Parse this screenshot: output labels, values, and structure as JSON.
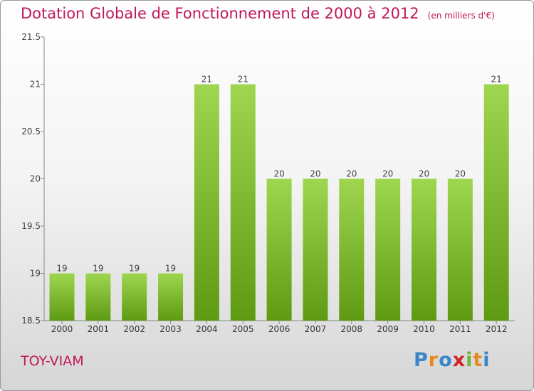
{
  "title": "Dotation Globale de Fonctionnement de 2000 à 2012",
  "subtitle": "(en milliers d'€)",
  "commune": "TOY-VIAM",
  "logo": {
    "text": "Proxiti"
  },
  "colors": {
    "title": "#c0185a",
    "bar_top": "#9fd650",
    "bar_bottom": "#5e9a12"
  },
  "chart_data": {
    "type": "bar",
    "categories": [
      "2000",
      "2001",
      "2002",
      "2003",
      "2004",
      "2005",
      "2006",
      "2007",
      "2008",
      "2009",
      "2010",
      "2011",
      "2012"
    ],
    "values": [
      19,
      19,
      19,
      19,
      21,
      21,
      20,
      20,
      20,
      20,
      20,
      20,
      21
    ],
    "data_labels": [
      "19",
      "19",
      "19",
      "19",
      "21",
      "21",
      "20",
      "20",
      "20",
      "20",
      "20",
      "20",
      "21"
    ],
    "title": "Dotation Globale de Fonctionnement de 2000 à 2012",
    "subtitle": "(en milliers d'€)",
    "xlabel": "",
    "ylabel": "",
    "ylim": [
      18.5,
      21.5
    ],
    "yticks": [
      18.5,
      19,
      19.5,
      20,
      20.5,
      21,
      21.5
    ],
    "ytick_labels": [
      "18.5",
      "19",
      "19.5",
      "20",
      "20.5",
      "21",
      "21.5"
    ],
    "grid": false,
    "legend": "none"
  }
}
